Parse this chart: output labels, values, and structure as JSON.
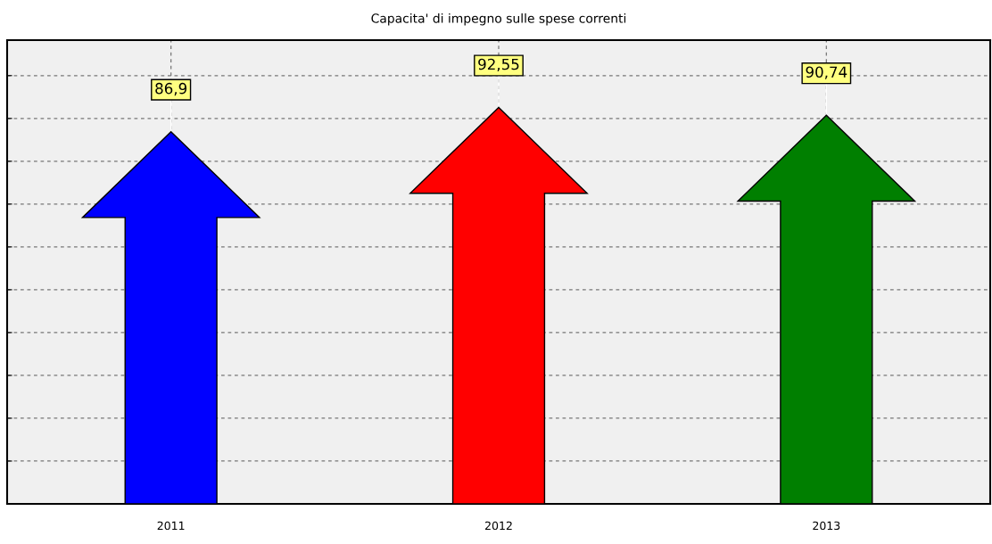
{
  "chart_data": {
    "type": "bar",
    "title": "Capacita' di impegno sulle spese correnti",
    "categories": [
      "2011",
      "2012",
      "2013"
    ],
    "values": [
      86.9,
      92.55,
      90.74
    ],
    "colors": [
      "#0000ff",
      "#ff0000",
      "#007f00"
    ],
    "value_labels": [
      "86,9",
      "92,55",
      "90,74"
    ],
    "grid": true,
    "tick_labels": "x"
  }
}
